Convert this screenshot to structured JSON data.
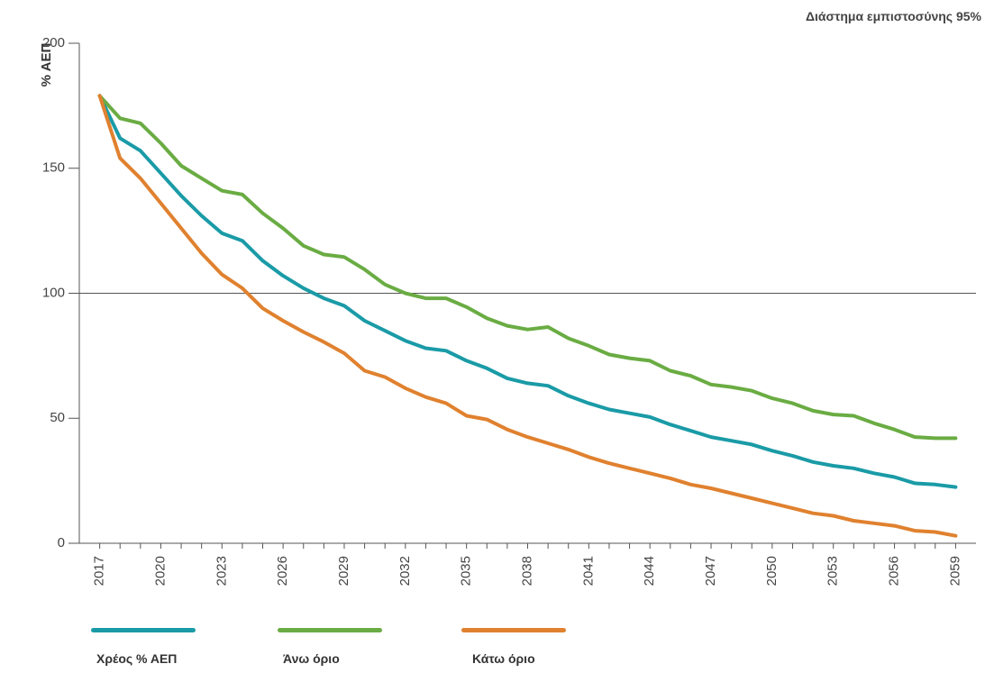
{
  "chart_data": {
    "type": "line",
    "subtitle": "Διάστημα εμπιστοσύνης 95%",
    "ylabel": "% ΑΕΠ",
    "xlabel": "",
    "ylim": [
      0,
      200
    ],
    "yticks": [
      0,
      50,
      100,
      150,
      200
    ],
    "xlim": [
      2016,
      2060
    ],
    "xticks": [
      "2017",
      "2020",
      "2023",
      "2026",
      "2029",
      "2032",
      "2035",
      "2038",
      "2041",
      "2044",
      "2047",
      "2050",
      "2053",
      "2056",
      "2059"
    ],
    "reference_line": 100,
    "x": [
      2017,
      2018,
      2019,
      2020,
      2021,
      2022,
      2023,
      2024,
      2025,
      2026,
      2027,
      2028,
      2029,
      2030,
      2031,
      2032,
      2033,
      2034,
      2035,
      2036,
      2037,
      2038,
      2039,
      2040,
      2041,
      2042,
      2043,
      2044,
      2045,
      2046,
      2047,
      2048,
      2049,
      2050,
      2051,
      2052,
      2053,
      2054,
      2055,
      2056,
      2057,
      2058,
      2059
    ],
    "series": [
      {
        "name": "Χρέος % ΑΕΠ",
        "color": "#1a9ba7",
        "values": [
          179,
          162,
          157,
          148,
          139,
          131,
          124,
          121,
          113,
          107,
          102,
          98,
          95,
          89,
          85,
          81,
          78,
          77,
          73,
          70,
          66,
          64,
          63,
          59,
          56,
          53.5,
          52,
          50.5,
          47.5,
          45,
          42.5,
          41,
          39.5,
          37,
          35,
          32.5,
          31,
          30,
          28,
          26.5,
          24,
          23.5,
          22.5
        ]
      },
      {
        "name": "Άνω όριο",
        "color": "#6aac43",
        "values": [
          179,
          170,
          168,
          160,
          151,
          146,
          141,
          139.5,
          132,
          126,
          119,
          115.5,
          114.5,
          109.5,
          103.5,
          100,
          98,
          98,
          94.5,
          90,
          87,
          85.5,
          86.5,
          82,
          79,
          75.5,
          74,
          73,
          69,
          67,
          63.5,
          62.5,
          61,
          58,
          56,
          53,
          51.5,
          51,
          48,
          45.5,
          42.5,
          42,
          42
        ]
      },
      {
        "name": "Κάτω όριο",
        "color": "#e0812f",
        "values": [
          179,
          154,
          146,
          136,
          126,
          116,
          107.5,
          102,
          94,
          89,
          84.5,
          80.5,
          76,
          69,
          66.5,
          62,
          58.5,
          56,
          51,
          49.5,
          45.5,
          42.5,
          40,
          37.5,
          34.5,
          32,
          30,
          28,
          26,
          23.5,
          22,
          20,
          18,
          16,
          14,
          12,
          11,
          9,
          8,
          7,
          5,
          4.5,
          3
        ]
      }
    ]
  }
}
